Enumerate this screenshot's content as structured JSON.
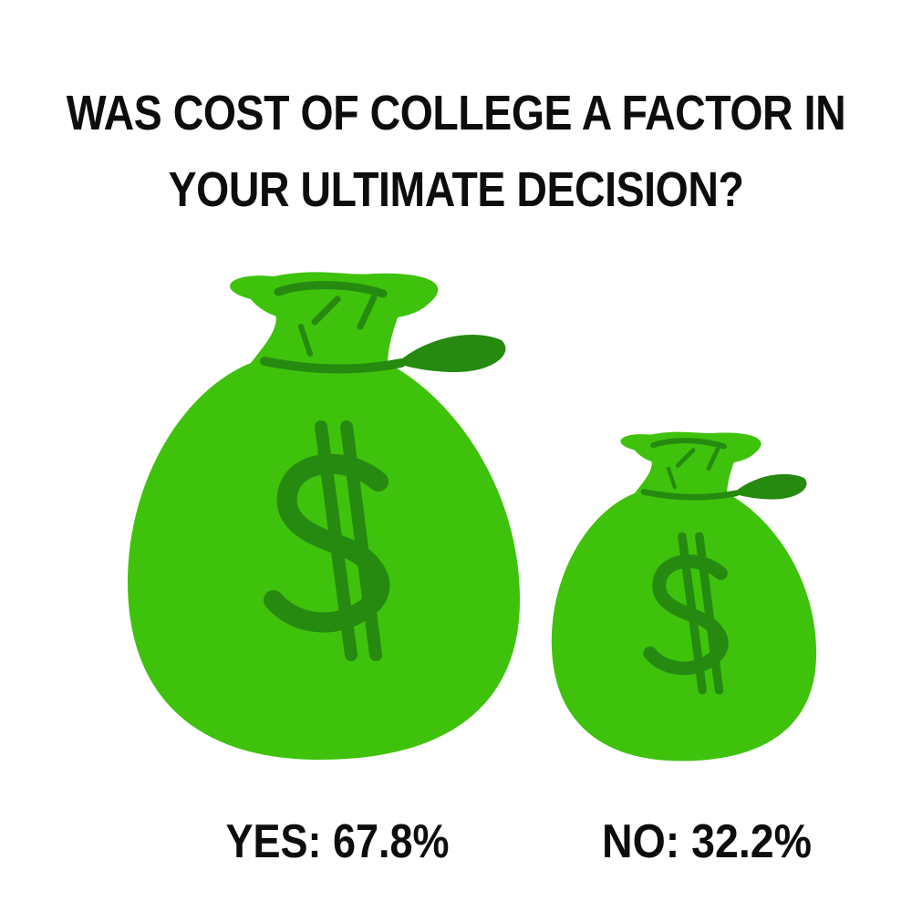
{
  "title": {
    "line1": "WAS COST OF COLLEGE A FACTOR IN",
    "line2": "YOUR ULTIMATE DECISION?"
  },
  "colors": {
    "bag": "#3ec20c",
    "bag_dark": "#268a10",
    "text": "#0d0d0d"
  },
  "icons": [
    "money-bag-icon",
    "dollar-sign-icon"
  ],
  "chart_data": {
    "type": "pictograph",
    "title": "WAS COST OF COLLEGE A FACTOR IN YOUR ULTIMATE DECISION?",
    "categories": [
      "YES",
      "NO"
    ],
    "values": [
      67.8,
      32.2
    ],
    "unit": "%",
    "labels": [
      "YES: 67.8%",
      "NO: 32.2%"
    ]
  }
}
